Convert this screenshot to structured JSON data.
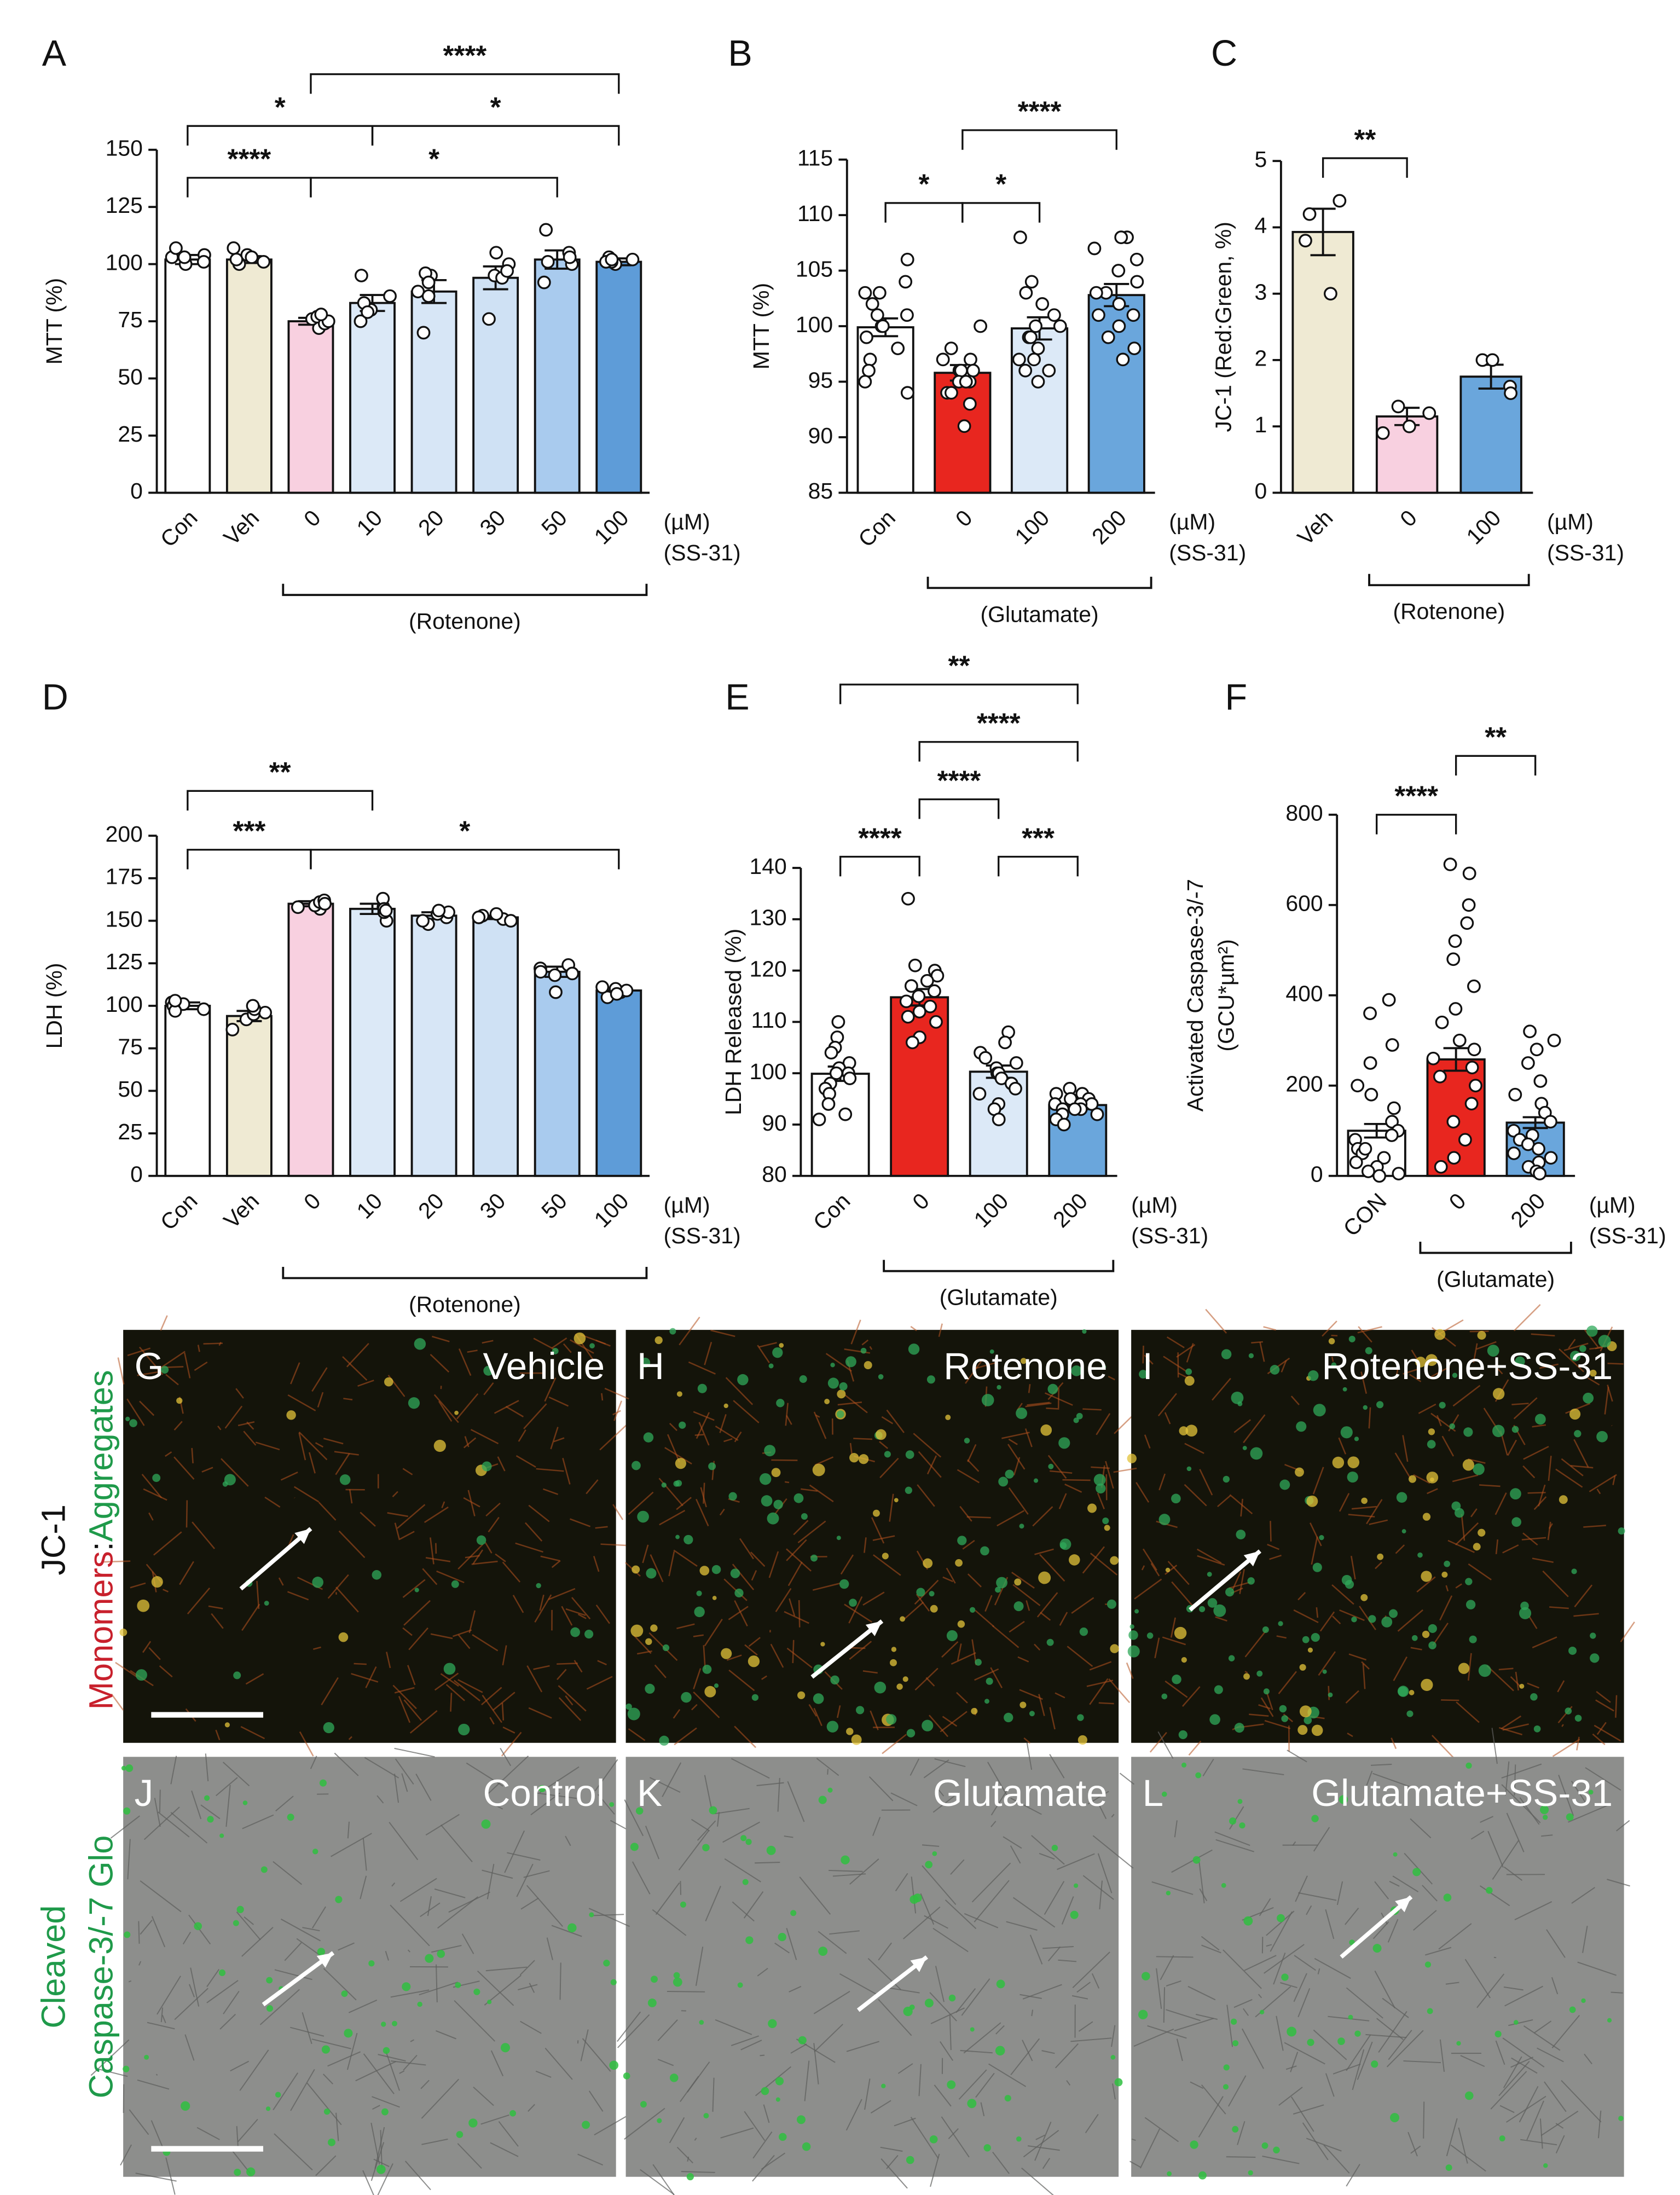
{
  "chart_data": [
    {
      "type": "bar",
      "panel": "A",
      "y_label": "MTT (%)",
      "categories": [
        "Con",
        "Veh",
        "0",
        "10",
        "20",
        "30",
        "50",
        "100"
      ],
      "values": [
        102,
        102,
        75,
        83,
        88,
        94,
        102,
        101
      ],
      "errors": [
        2,
        1.5,
        1.5,
        3.5,
        5,
        5,
        4,
        1.5
      ],
      "points": [
        [
          100,
          103,
          104,
          101,
          107,
          103
        ],
        [
          100,
          104,
          103,
          101,
          107,
          102
        ],
        [
          72,
          76,
          77,
          74,
          75,
          78
        ],
        [
          75,
          80,
          83,
          86,
          79,
          95
        ],
        [
          70,
          88,
          95,
          96,
          86,
          92
        ],
        [
          76,
          95,
          100,
          105,
          94,
          97
        ],
        [
          92,
          100,
          105,
          115,
          101,
          103
        ],
        [
          100,
          102,
          103,
          101,
          101,
          102
        ]
      ],
      "colors": [
        "#ffffff",
        "#efead3",
        "#f8d0e0",
        "#dce9f7",
        "#d7e6f6",
        "#cfe1f4",
        "#a9cbee",
        "#5e9cd8"
      ],
      "ylim": [
        0,
        150
      ],
      "yticks": [
        0,
        25,
        50,
        75,
        100,
        125,
        150
      ],
      "unit": "(µM)",
      "treatment": "(SS-31)",
      "group_label": "(Rotenone)",
      "group_from": 2,
      "group_to": 7,
      "significance": [
        {
          "from": 0,
          "to": 2,
          "label": "****"
        },
        {
          "from": 2,
          "to": 6,
          "label": "*"
        },
        {
          "from": 0,
          "to": 3,
          "label": "*"
        },
        {
          "from": 3,
          "to": 7,
          "label": "*"
        },
        {
          "from": 2,
          "to": 7,
          "label": "****"
        }
      ]
    },
    {
      "type": "bar",
      "panel": "B",
      "y_label": "MTT (%)",
      "categories": [
        "Con",
        "0",
        "100",
        "200"
      ],
      "values": [
        99.9,
        95.8,
        99.8,
        102.8
      ],
      "errors": [
        0.8,
        0.7,
        1.0,
        1.0
      ],
      "points": [
        [
          106,
          104,
          103,
          102,
          101,
          101,
          100,
          100,
          99,
          98,
          97,
          96,
          95,
          94,
          103
        ],
        [
          100,
          98,
          97,
          97,
          96,
          96,
          96,
          96,
          95,
          95,
          95,
          94,
          94,
          93,
          91
        ],
        [
          108,
          104,
          103,
          102,
          101,
          100,
          100,
          99,
          99,
          98,
          97,
          97,
          96,
          96,
          95
        ],
        [
          108,
          108,
          107,
          106,
          105,
          104,
          103,
          103,
          102,
          101,
          101,
          100,
          99,
          98,
          97
        ]
      ],
      "colors": [
        "#ffffff",
        "#e8261f",
        "#dce9f7",
        "#6aa6dc"
      ],
      "ylim": [
        85,
        115
      ],
      "yticks": [
        85,
        90,
        95,
        100,
        105,
        110,
        115
      ],
      "unit": "(µM)",
      "treatment": "(SS-31)",
      "group_label": "(Glutamate)",
      "group_from": 1,
      "group_to": 3,
      "significance": [
        {
          "from": 0,
          "to": 1,
          "label": "*"
        },
        {
          "from": 1,
          "to": 2,
          "label": "*"
        },
        {
          "from": 1,
          "to": 3,
          "label": "****"
        }
      ]
    },
    {
      "type": "bar",
      "panel": "C",
      "y_label": "JC-1 (Red:Green, %)",
      "categories": [
        "Veh",
        "0",
        "100"
      ],
      "values": [
        3.93,
        1.15,
        1.75
      ],
      "errors": [
        0.35,
        0.13,
        0.18
      ],
      "points": [
        [
          4.4,
          4.2,
          3.8,
          3.0
        ],
        [
          1.0,
          1.3,
          0.9,
          1.2
        ],
        [
          2.0,
          1.6,
          1.5,
          2.0
        ]
      ],
      "colors": [
        "#efead3",
        "#f8d0e0",
        "#6aa6dc"
      ],
      "ylim": [
        0,
        5
      ],
      "yticks": [
        0,
        1,
        2,
        3,
        4,
        5
      ],
      "unit": "(µM)",
      "treatment": "(SS-31)",
      "group_label": "(Rotenone)",
      "group_from": 1,
      "group_to": 2,
      "significance": [
        {
          "from": 0,
          "to": 1,
          "label": "**"
        }
      ]
    },
    {
      "type": "bar",
      "panel": "D",
      "y_label": "LDH (%)",
      "categories": [
        "Con",
        "Veh",
        "0",
        "10",
        "20",
        "30",
        "50",
        "100"
      ],
      "values": [
        100,
        94,
        160,
        157,
        153,
        152,
        120,
        109
      ],
      "errors": [
        2,
        3,
        1.5,
        3,
        2,
        1,
        3,
        1.5
      ],
      "points": [
        [
          98,
          101,
          102,
          100,
          97,
          103
        ],
        [
          86,
          92,
          96,
          95,
          98,
          100
        ],
        [
          157,
          159,
          161,
          162,
          160,
          158
        ],
        [
          150,
          155,
          158,
          163,
          157,
          156
        ],
        [
          148,
          152,
          155,
          154,
          150,
          156
        ],
        [
          151,
          152,
          153,
          152,
          154,
          150
        ],
        [
          108,
          118,
          122,
          124,
          119,
          120
        ],
        [
          105,
          108,
          110,
          111,
          109,
          107
        ]
      ],
      "colors": [
        "#ffffff",
        "#efead3",
        "#f8d0e0",
        "#dce9f7",
        "#d7e6f6",
        "#cfe1f4",
        "#a9cbee",
        "#5e9cd8"
      ],
      "ylim": [
        0,
        200
      ],
      "yticks": [
        0,
        25,
        50,
        75,
        100,
        125,
        150,
        175,
        200
      ],
      "unit": "(µM)",
      "treatment": "(SS-31)",
      "group_label": "(Rotenone)",
      "group_from": 2,
      "group_to": 7,
      "significance": [
        {
          "from": 0,
          "to": 2,
          "label": "***"
        },
        {
          "from": 2,
          "to": 7,
          "label": "*"
        },
        {
          "from": 0,
          "to": 3,
          "label": "**"
        }
      ]
    },
    {
      "type": "bar",
      "panel": "E",
      "y_label": "LDH Released (%)",
      "categories": [
        "Con",
        "0",
        "100",
        "200"
      ],
      "values": [
        99.9,
        114.8,
        100.3,
        93.8
      ],
      "errors": [
        1.4,
        1.6,
        1.2,
        0.8
      ],
      "points": [
        [
          110,
          107,
          105,
          104,
          102,
          101,
          100,
          100,
          99,
          98,
          97,
          96,
          94,
          92,
          91
        ],
        [
          134,
          121,
          120,
          119,
          118,
          117,
          116,
          115,
          114,
          113,
          112,
          111,
          110,
          107,
          106
        ],
        [
          108,
          106,
          104,
          103,
          102,
          101,
          100,
          100,
          99,
          98,
          97,
          96,
          94,
          93,
          91
        ],
        [
          97,
          96,
          96,
          95,
          95,
          94,
          94,
          94,
          93,
          93,
          93,
          92,
          92,
          91,
          90
        ]
      ],
      "colors": [
        "#ffffff",
        "#e8261f",
        "#dce9f7",
        "#6aa6dc"
      ],
      "ylim": [
        80,
        140
      ],
      "yticks": [
        80,
        90,
        100,
        110,
        120,
        130,
        140
      ],
      "unit": "(µM)",
      "treatment": "(SS-31)",
      "group_label": "(Glutamate)",
      "group_from": 1,
      "group_to": 3,
      "significance": [
        {
          "from": 0,
          "to": 1,
          "label": "****"
        },
        {
          "from": 2,
          "to": 3,
          "label": "***"
        },
        {
          "from": 1,
          "to": 2,
          "label": "****"
        },
        {
          "from": 1,
          "to": 3,
          "label": "****"
        },
        {
          "from": 0,
          "to": 3,
          "label": "**"
        }
      ]
    },
    {
      "type": "bar",
      "panel": "F",
      "y_label": "Activated Caspase-3/-7",
      "y_label_2": "(GCU*µm²)",
      "categories": [
        "CON",
        "0",
        "200"
      ],
      "values": [
        100,
        258,
        118
      ],
      "errors": [
        15,
        25,
        12
      ],
      "points": [
        [
          390,
          360,
          290,
          250,
          200,
          180,
          150,
          120,
          100,
          90,
          80,
          60,
          50,
          40,
          30,
          20,
          10,
          5,
          0,
          60
        ],
        [
          690,
          670,
          600,
          560,
          520,
          480,
          420,
          370,
          340,
          300,
          280,
          260,
          240,
          220,
          200,
          160,
          120,
          80,
          40,
          20
        ],
        [
          320,
          300,
          280,
          250,
          210,
          180,
          160,
          140,
          120,
          100,
          90,
          80,
          70,
          60,
          50,
          40,
          30,
          20,
          10,
          5
        ]
      ],
      "colors": [
        "#ffffff",
        "#e8261f",
        "#6aa6dc"
      ],
      "ylim": [
        0,
        800
      ],
      "yticks": [
        0,
        200,
        400,
        600,
        800
      ],
      "unit": "(µM)",
      "treatment": "(SS-31)",
      "group_label": "(Glutamate)",
      "group_from": 1,
      "group_to": 2,
      "significance": [
        {
          "from": 0,
          "to": 1,
          "label": "****"
        },
        {
          "from": 1,
          "to": 2,
          "label": "**"
        }
      ]
    }
  ],
  "images": [
    {
      "panel": "G",
      "label": "Vehicle",
      "kind": "fluorescence"
    },
    {
      "panel": "H",
      "label": "Rotenone",
      "kind": "fluorescence"
    },
    {
      "panel": "I",
      "label": "Rotenone+SS-31",
      "kind": "fluorescence"
    },
    {
      "panel": "J",
      "label": "Control",
      "kind": "brightfield"
    },
    {
      "panel": "K",
      "label": "Glutamate",
      "kind": "brightfield"
    },
    {
      "panel": "L",
      "label": "Glutamate+SS-31",
      "kind": "brightfield"
    }
  ],
  "row_labels": {
    "jc1": "JC-1",
    "monomers": "Monomers",
    "colon": ":",
    "aggregates": "Aggregates",
    "cleaved": "Cleaved",
    "caspase": "Caspase-3/-7 Glo"
  }
}
